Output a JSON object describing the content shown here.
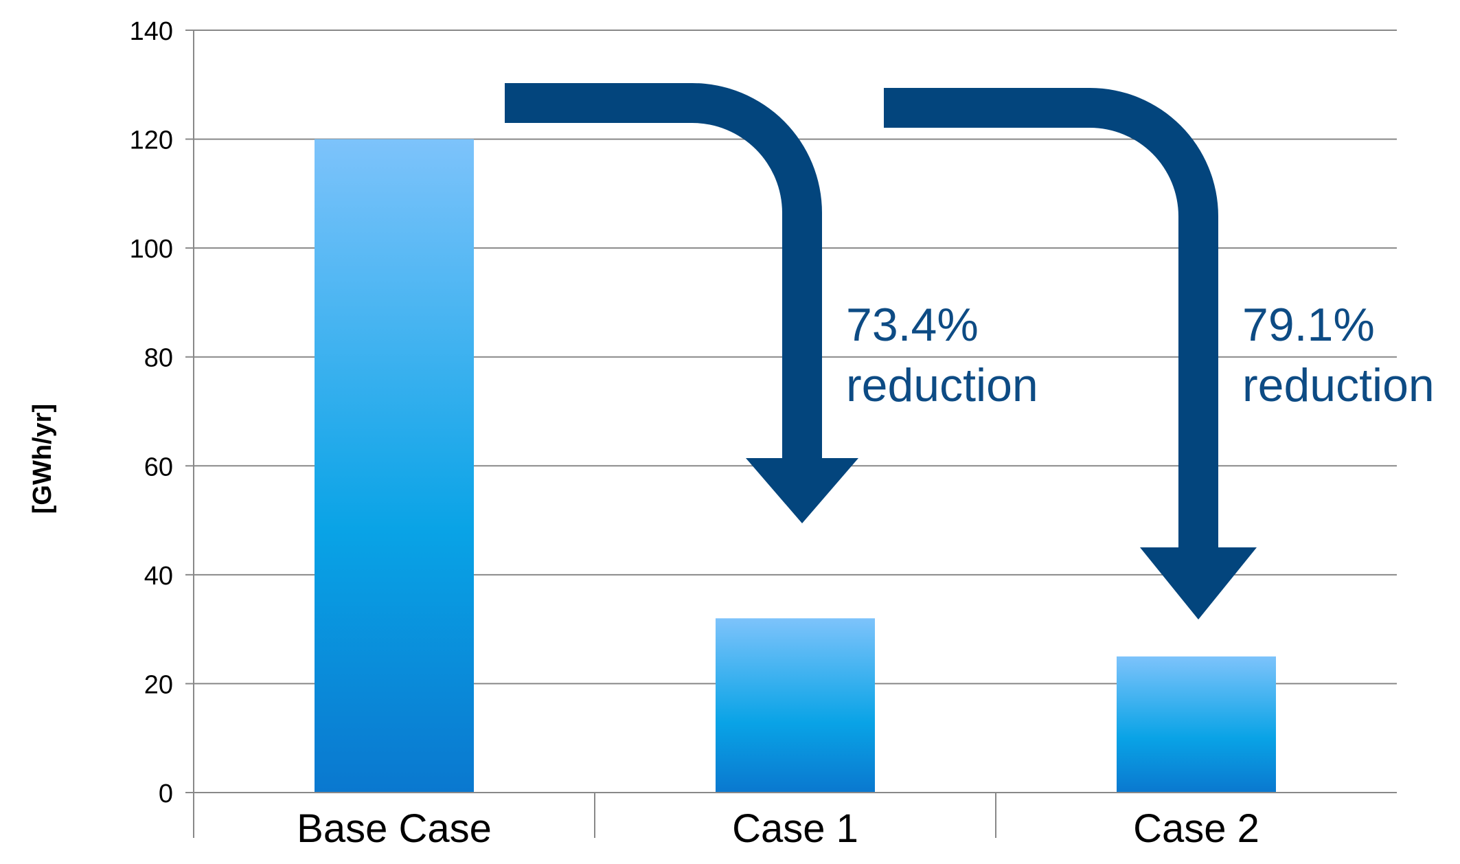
{
  "chart_data": {
    "type": "bar",
    "categories": [
      "Base Case",
      "Case 1",
      "Case 2"
    ],
    "values": [
      120,
      32,
      25
    ],
    "title": "",
    "xlabel": "",
    "ylabel": "[GWh/yr]",
    "ylim": [
      0,
      140
    ],
    "yticks": [
      0,
      20,
      40,
      60,
      80,
      100,
      120,
      140
    ],
    "grid": true,
    "legend": "none",
    "annotations": [
      {
        "text_line1": "73.4%",
        "text_line2": "reduction",
        "from": "Base Case",
        "to": "Case 1"
      },
      {
        "text_line1": "79.1%",
        "text_line2": "reduction",
        "from": "Base Case",
        "to": "Case 2"
      }
    ]
  },
  "colors": {
    "bar_top": "#7dc3fb",
    "bar_mid": "#09a3e6",
    "bar_bottom": "#0a78cf",
    "arrow": "#03457d",
    "annotation_text": "#0d4b84",
    "grid": "#888888",
    "text": "#000000"
  }
}
